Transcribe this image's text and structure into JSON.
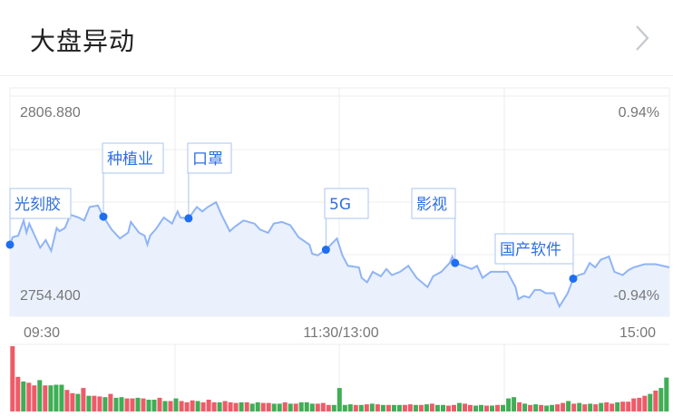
{
  "header": {
    "title": "大盘异动",
    "more_icon": "chevron-right-icon"
  },
  "colors": {
    "line": "#8fb4f5",
    "fill": "#eaf1fd",
    "dot": "#1e6ef2",
    "annotation_text": "#2f6fe0",
    "annotation_border": "#a9c6f2",
    "up": "#ee5b68",
    "down": "#3fae55",
    "grid": "#ececec"
  },
  "chart_data": {
    "type": "line",
    "ylim": [
      2754.4,
      2806.88
    ],
    "y_labels": {
      "max": "2806.880",
      "min": "2754.400",
      "max_pct": "0.94%",
      "min_pct": "-0.94%"
    },
    "x_ticks": [
      "09:30",
      "11:30/13:00",
      "15:00"
    ],
    "grid": true,
    "series": [
      {
        "points": [
          [
            "09:30",
            2769.95
          ],
          [
            "09:31",
            2771.8
          ],
          [
            "09:33",
            2772.2
          ],
          [
            "09:35",
            2775.96
          ],
          [
            "09:36",
            2772.94
          ],
          [
            "09:37",
            2775.2
          ],
          [
            "09:39",
            2772.2
          ],
          [
            "09:41",
            2769.2
          ],
          [
            "09:43",
            2771.1
          ],
          [
            "09:45",
            2768.4
          ],
          [
            "09:47",
            2774.1
          ],
          [
            "09:48",
            2773.3
          ],
          [
            "09:50",
            2774.1
          ],
          [
            "09:52",
            2777.4
          ],
          [
            "09:55",
            2776.7
          ],
          [
            "09:57",
            2775.96
          ],
          [
            "09:59",
            2779.3
          ],
          [
            "10:02",
            2779.7
          ],
          [
            "10:04",
            2776.9
          ],
          [
            "10:07",
            2773.7
          ],
          [
            "10:10",
            2771.5
          ],
          [
            "10:13",
            2772.94
          ],
          [
            "10:14",
            2775.6
          ],
          [
            "10:17",
            2772.9
          ],
          [
            "10:19",
            2772.2
          ],
          [
            "10:20",
            2769.95
          ],
          [
            "10:21",
            2772.2
          ],
          [
            "10:23",
            2773.7
          ],
          [
            "10:26",
            2776.7
          ],
          [
            "10:29",
            2775.2
          ],
          [
            "10:31",
            2778.2
          ],
          [
            "10:32",
            2776.7
          ],
          [
            "10:35",
            2776.5
          ],
          [
            "10:38",
            2779.3
          ],
          [
            "10:40",
            2778.2
          ],
          [
            "10:42",
            2779.3
          ],
          [
            "10:45",
            2780.5
          ],
          [
            "10:47",
            2777.4
          ],
          [
            "10:50",
            2773.3
          ],
          [
            "10:52",
            2774.5
          ],
          [
            "10:55",
            2775.96
          ],
          [
            "10:59",
            2775.2
          ],
          [
            "11:01",
            2773.7
          ],
          [
            "11:04",
            2772.9
          ],
          [
            "11:06",
            2775.2
          ],
          [
            "11:09",
            2775.6
          ],
          [
            "11:12",
            2774.8
          ],
          [
            "11:15",
            2771.8
          ],
          [
            "11:19",
            2769.95
          ],
          [
            "11:20",
            2767.7
          ],
          [
            "11:22",
            2767.3
          ],
          [
            "11:25",
            2768.7
          ],
          [
            "11:29",
            2771.5
          ],
          [
            "13:01",
            2767.3
          ],
          [
            "13:03",
            2764.7
          ],
          [
            "13:07",
            2764.3
          ],
          [
            "13:08",
            2761.7
          ],
          [
            "13:10",
            2760.6
          ],
          [
            "13:12",
            2763.2
          ],
          [
            "13:15",
            2762.1
          ],
          [
            "13:17",
            2763.9
          ],
          [
            "13:19",
            2762.4
          ],
          [
            "13:22",
            2763.2
          ],
          [
            "13:25",
            2764.7
          ],
          [
            "13:28",
            2761.7
          ],
          [
            "13:32",
            2759.4
          ],
          [
            "13:34",
            2762.1
          ],
          [
            "13:37",
            2763.2
          ],
          [
            "13:40",
            2765.4
          ],
          [
            "13:41",
            2767.0
          ],
          [
            "13:42",
            2765.4
          ],
          [
            "13:45",
            2764.7
          ],
          [
            "13:48",
            2763.9
          ],
          [
            "13:50",
            2764.7
          ],
          [
            "13:52",
            2761.7
          ],
          [
            "13:55",
            2763.2
          ],
          [
            "13:58",
            2763.2
          ],
          [
            "14:01",
            2763.2
          ],
          [
            "14:04",
            2759.4
          ],
          [
            "14:05",
            2756.4
          ],
          [
            "14:07",
            2757.2
          ],
          [
            "14:09",
            2756.8
          ],
          [
            "14:11",
            2758.7
          ],
          [
            "14:13",
            2758.7
          ],
          [
            "14:15",
            2757.9
          ],
          [
            "14:18",
            2757.9
          ],
          [
            "14:20",
            2754.6
          ],
          [
            "14:22",
            2756.8
          ],
          [
            "14:23",
            2757.9
          ],
          [
            "14:25",
            2761.5
          ],
          [
            "14:27",
            2762.4
          ],
          [
            "14:29",
            2762.8
          ],
          [
            "14:31",
            2765.4
          ],
          [
            "14:33",
            2764.3
          ],
          [
            "14:35",
            2766.2
          ],
          [
            "14:38",
            2767.0
          ],
          [
            "14:40",
            2763.2
          ],
          [
            "14:43",
            2762.4
          ],
          [
            "14:45",
            2763.6
          ],
          [
            "14:47",
            2764.3
          ],
          [
            "14:51",
            2765.1
          ],
          [
            "14:55",
            2765.1
          ],
          [
            "15:00",
            2764.3
          ]
        ]
      }
    ],
    "annotations": [
      {
        "label": "光刻胶",
        "time": "09:30",
        "price": 2769.95
      },
      {
        "label": "种植业",
        "time": "10:04",
        "price": 2776.9
      },
      {
        "label": "口罩",
        "time": "10:35",
        "price": 2776.5
      },
      {
        "label": "5G",
        "time": "11:25",
        "price": 2768.7
      },
      {
        "label": "影视",
        "time": "13:42",
        "price": 2765.4
      },
      {
        "label": "国产软件",
        "time": "14:25",
        "price": 2761.5
      }
    ],
    "volume": {
      "values": [
        100,
        53,
        46,
        44,
        40,
        48,
        40,
        40,
        41,
        41,
        33,
        28,
        27,
        36,
        24,
        24,
        23,
        22,
        27,
        21,
        22,
        20,
        20,
        21,
        20,
        18,
        18,
        21,
        16,
        16,
        20,
        16,
        14,
        17,
        16,
        14,
        18,
        14,
        14,
        16,
        14,
        13,
        14,
        14,
        12,
        14,
        13,
        13,
        12,
        12,
        14,
        12,
        12,
        14,
        14,
        12,
        12,
        13,
        10,
        10,
        36,
        10,
        11,
        10,
        10,
        11,
        12,
        11,
        10,
        10,
        10,
        10,
        10,
        11,
        10,
        10,
        11,
        12,
        10,
        10,
        9,
        10,
        13,
        12,
        10,
        9,
        10,
        9,
        9,
        10,
        10,
        20,
        22,
        14,
        12,
        10,
        11,
        10,
        9,
        10,
        11,
        13,
        16,
        12,
        13,
        11,
        12,
        11,
        13,
        14,
        12,
        14,
        15,
        15,
        20,
        21,
        24,
        27,
        32,
        36,
        52
      ],
      "directions": [
        "up",
        "up",
        "down",
        "up",
        "up",
        "down",
        "up",
        "down",
        "down",
        "down",
        "up",
        "up",
        "down",
        "up",
        "down",
        "up",
        "up",
        "down",
        "up",
        "down",
        "down",
        "up",
        "up",
        "down",
        "up",
        "down",
        "down",
        "up",
        "down",
        "up",
        "down",
        "up",
        "up",
        "up",
        "down",
        "up",
        "up",
        "up",
        "down",
        "up",
        "up",
        "up",
        "down",
        "up",
        "down",
        "down",
        "up",
        "up",
        "down",
        "down",
        "up",
        "down",
        "up",
        "down",
        "down",
        "down",
        "up",
        "up",
        "up",
        "down",
        "down",
        "down",
        "down",
        "up",
        "down",
        "up",
        "down",
        "up",
        "down",
        "up",
        "down",
        "down",
        "up",
        "up",
        "down",
        "up",
        "down",
        "up",
        "down",
        "down",
        "up",
        "up",
        "down",
        "up",
        "up",
        "down",
        "down",
        "up",
        "down",
        "up",
        "down",
        "down",
        "down",
        "up",
        "down",
        "up",
        "down",
        "up",
        "down",
        "down",
        "up",
        "up",
        "down",
        "up",
        "down",
        "up",
        "down",
        "up",
        "down",
        "up",
        "up",
        "down",
        "up",
        "up",
        "up",
        "up",
        "up",
        "down",
        "up",
        "down",
        "down"
      ]
    }
  }
}
